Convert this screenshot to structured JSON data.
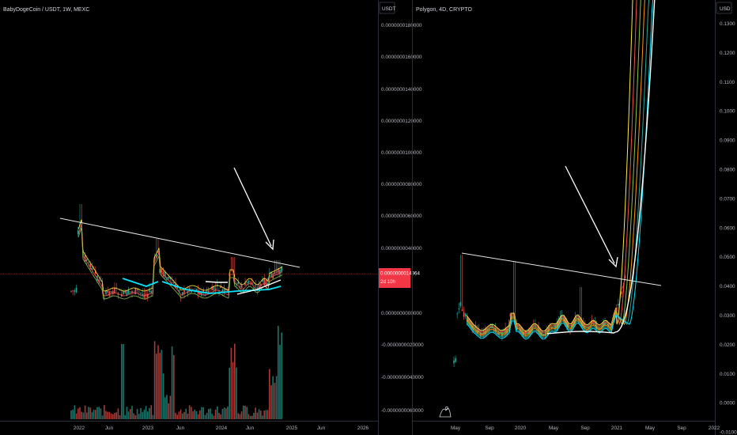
{
  "colors": {
    "background": "#000000",
    "axis_border": "#2a2e39",
    "text": "#d1d4dc",
    "up_candle": "#26a69a",
    "down_candle": "#ef5350",
    "trendline": "#e6e6e6",
    "arrow": "#ffffff",
    "price_label_bg": "#f23645",
    "ma_colors": [
      "#ffffff",
      "#00e5ff",
      "#26a69a",
      "#ffeb3b",
      "#ff9800",
      "#8bc34a",
      "#ef5350"
    ]
  },
  "chart_data": [
    {
      "type": "candlestick",
      "title": "BabyDogeCoin / USDT, 1W, MEXC",
      "unit_label": "USDT",
      "y_ticks": [
        "0.0000000180000",
        "0.0000000160000",
        "0.0000000140000",
        "0.0000000120000",
        "0.0000000100000",
        "0.0000000080000",
        "0.0000000060000",
        "0.0000000040000",
        "0.0000000000000",
        "-0.0000000020000",
        "-0.0000000040000",
        "-0.0000000060000"
      ],
      "x_ticks": [
        "2022",
        "Jun",
        "2023",
        "Jun",
        "2024",
        "Jun",
        "2025",
        "Jun",
        "2026"
      ],
      "last_price_label": "0.0000000014964",
      "countdown_label": "2d 10h",
      "annotations": [
        "descending trendline across highs",
        "arrow pointing to trendline touch"
      ],
      "has_volume": true,
      "grid": false
    },
    {
      "type": "candlestick",
      "title": "Polygon, 4D, CRYPTO",
      "unit_label": "USD",
      "y_ticks": [
        "0.1300",
        "0.1200",
        "0.1100",
        "0.1000",
        "0.0900",
        "0.0800",
        "0.0700",
        "0.0600",
        "0.0500",
        "0.0400",
        "0.0300",
        "0.0200",
        "0.0100",
        "0.0000",
        "-0.0100"
      ],
      "x_ticks": [
        "May",
        "Sep",
        "2020",
        "May",
        "Sep",
        "2021",
        "May",
        "Sep",
        "2022"
      ],
      "annotations": [
        "descending trendline across highs",
        "arrow pointing to breakout"
      ],
      "has_volume": false,
      "grid": false
    }
  ]
}
